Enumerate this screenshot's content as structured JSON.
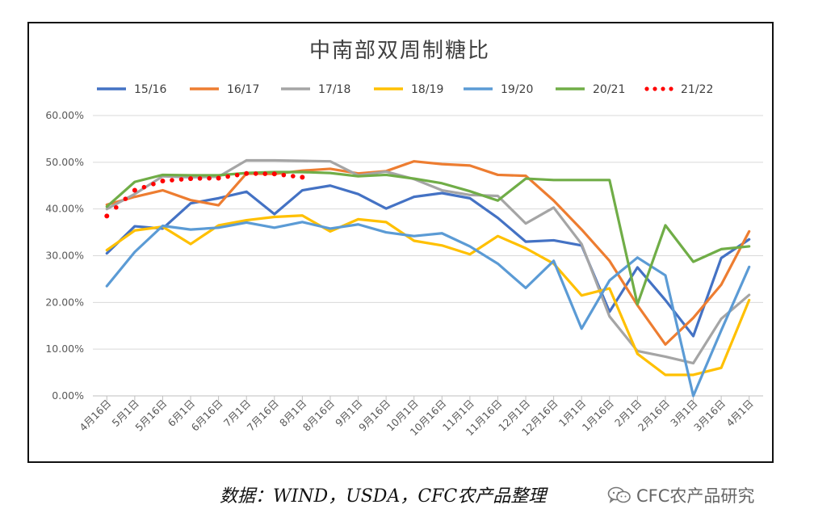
{
  "chart_data": {
    "type": "line",
    "title": "中南部双周制糖比",
    "xlabel": "",
    "ylabel": "",
    "ylim": [
      0,
      60
    ],
    "y_tick_labels": [
      "0.00%",
      "10.00%",
      "20.00%",
      "30.00%",
      "40.00%",
      "50.00%",
      "60.00%"
    ],
    "grid": "horizontal",
    "legend_position": "top",
    "categories": [
      "4月16日",
      "5月1日",
      "5月16日",
      "6月1日",
      "6月16日",
      "7月1日",
      "7月16日",
      "8月1日",
      "8月16日",
      "9月1日",
      "9月16日",
      "10月1日",
      "10月16日",
      "11月1日",
      "11月16日",
      "12月1日",
      "12月16日",
      "1月1日",
      "1月16日",
      "2月1日",
      "2月16日",
      "3月1日",
      "3月16日",
      "4月1日"
    ],
    "series": [
      {
        "name": "15/16",
        "color": "#4472C4",
        "style": "solid",
        "values": [
          30.5,
          36.3,
          35.8,
          41.2,
          42.3,
          43.7,
          38.9,
          44.0,
          45.0,
          43.2,
          40.1,
          42.6,
          43.4,
          42.3,
          38.1,
          33.0,
          33.3,
          32.2,
          18.0,
          27.5,
          20.5,
          12.8,
          29.5,
          33.5
        ]
      },
      {
        "name": "16/17",
        "color": "#ED7D31",
        "style": "solid",
        "values": [
          40.9,
          42.6,
          44.0,
          41.9,
          40.8,
          47.6,
          47.5,
          48.2,
          48.6,
          47.6,
          48.1,
          50.2,
          49.6,
          49.3,
          47.3,
          47.1,
          41.8,
          35.6,
          28.9,
          19.4,
          11.0,
          16.7,
          23.8,
          35.2
        ]
      },
      {
        "name": "17/18",
        "color": "#A5A5A5",
        "style": "solid",
        "values": [
          40.0,
          43.2,
          47.0,
          46.8,
          46.9,
          50.4,
          50.4,
          50.3,
          50.2,
          47.2,
          48.0,
          46.4,
          44.0,
          43.0,
          42.8,
          36.9,
          40.3,
          32.5,
          17.0,
          9.6,
          8.4,
          7.0,
          16.5,
          21.6
        ]
      },
      {
        "name": "18/19",
        "color": "#FFC000",
        "style": "solid",
        "values": [
          31.2,
          35.4,
          36.2,
          32.5,
          36.5,
          37.6,
          38.3,
          38.6,
          35.2,
          37.8,
          37.2,
          33.2,
          32.2,
          30.3,
          34.2,
          31.6,
          28.3,
          21.5,
          23.0,
          9.0,
          4.5,
          4.5,
          6.0,
          20.5
        ]
      },
      {
        "name": "19/20",
        "color": "#5B9BD5",
        "style": "solid",
        "values": [
          23.5,
          30.8,
          36.4,
          35.6,
          36.0,
          37.1,
          36.0,
          37.2,
          35.8,
          36.7,
          35.0,
          34.2,
          34.8,
          32.0,
          28.3,
          23.1,
          28.9,
          14.4,
          24.7,
          29.6,
          25.8,
          0.0,
          14.0,
          27.6
        ]
      },
      {
        "name": "20/21",
        "color": "#70AD47",
        "style": "solid",
        "values": [
          40.5,
          45.8,
          47.3,
          47.2,
          47.2,
          47.7,
          47.9,
          47.9,
          47.7,
          47.0,
          47.3,
          46.5,
          45.5,
          43.8,
          41.8,
          46.5,
          46.2,
          46.2,
          46.2,
          19.6,
          36.5,
          28.7,
          31.4,
          32.0
        ]
      },
      {
        "name": "21/22",
        "color": "#FF0000",
        "style": "dotted",
        "values": [
          38.5,
          44.0,
          46.0,
          46.5,
          46.6,
          47.6,
          47.5,
          46.8,
          null,
          null,
          null,
          null,
          null,
          null,
          null,
          null,
          null,
          null,
          null,
          null,
          null,
          null,
          null,
          null
        ]
      }
    ]
  },
  "source_note": "数据：WIND，USDA，CFC农产品整理",
  "watermark": "CFC农产品研究",
  "watermark_icon": "wechat-icon"
}
